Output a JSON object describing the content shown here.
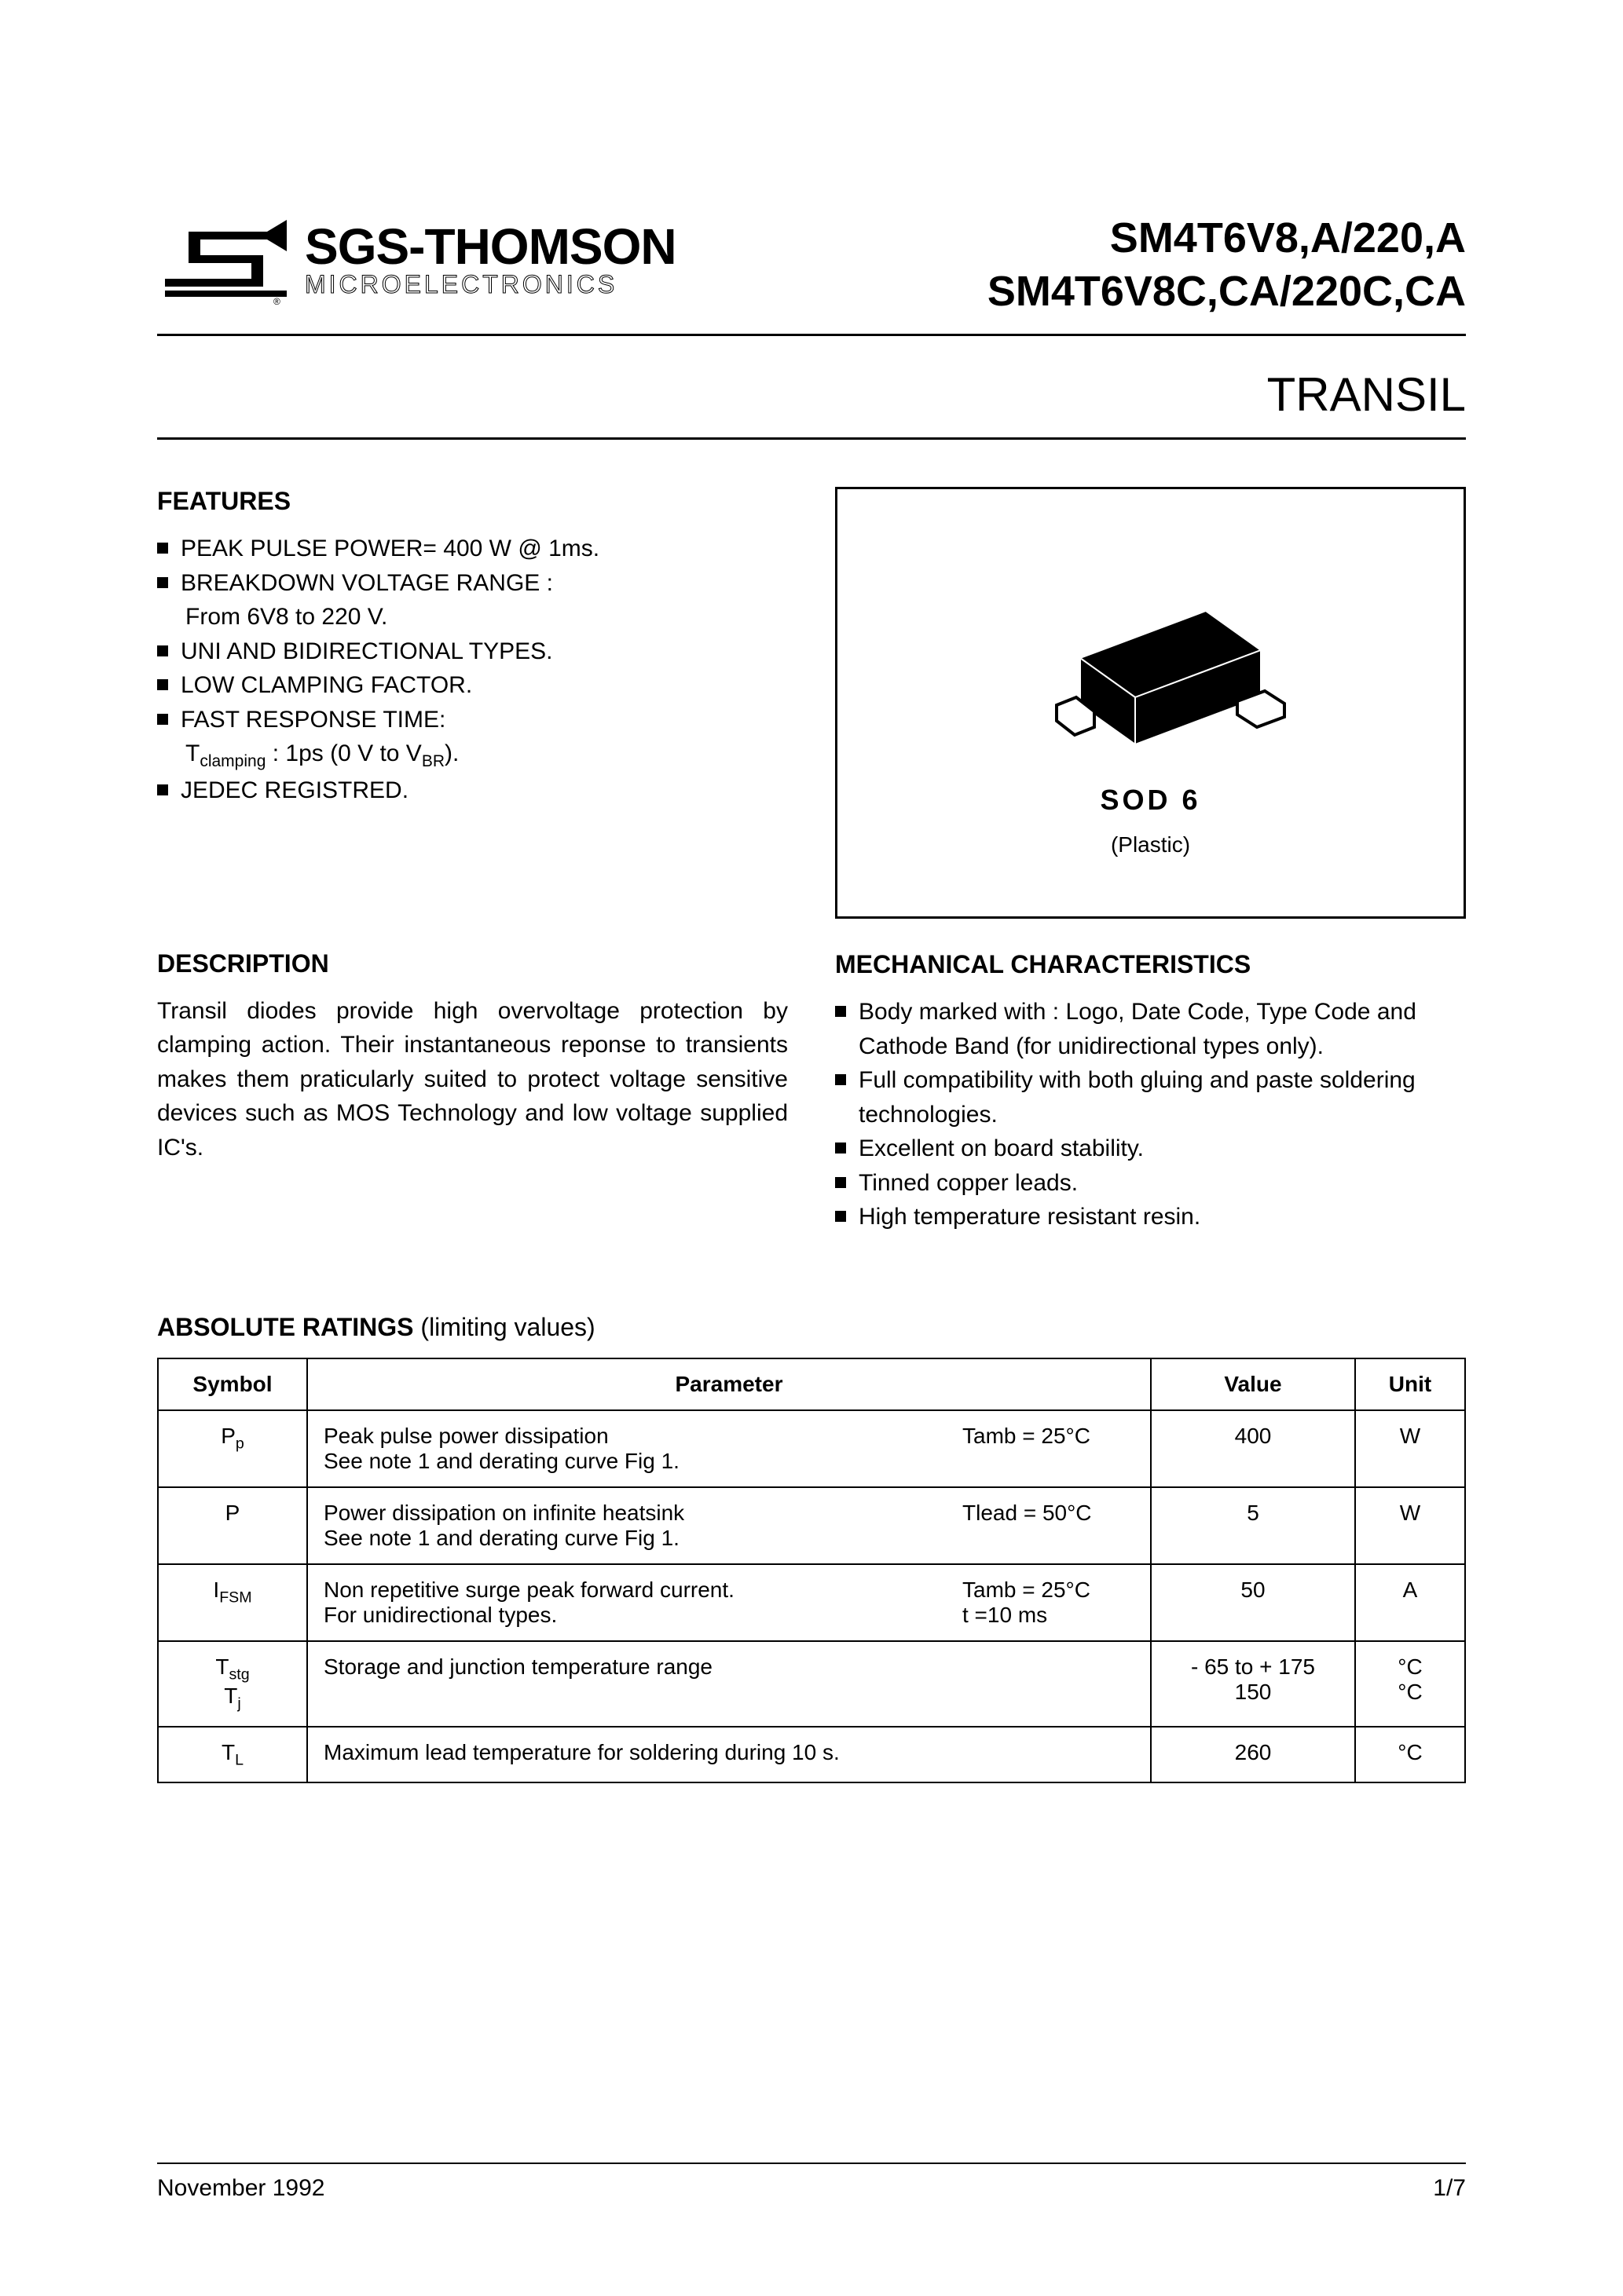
{
  "header": {
    "logo_main": "SGS-THOMSON",
    "logo_sub": "MICROELECTRONICS",
    "part_line1": "SM4T6V8,A/220,A",
    "part_line2": "SM4T6V8C,CA/220C,CA",
    "product_type": "TRANSIL"
  },
  "features": {
    "title": "FEATURES",
    "items": [
      "PEAK PULSE POWER= 400 W @ 1ms.",
      "BREAKDOWN VOLTAGE RANGE :",
      "UNI AND BIDIRECTIONAL TYPES.",
      "LOW CLAMPING FACTOR.",
      "FAST RESPONSE TIME:",
      "JEDEC REGISTRED."
    ],
    "sub_breakdown": "From 6V8 to 220 V.",
    "sub_fast": "Tclamping : 1ps (0 V to VBR)."
  },
  "description": {
    "title": "DESCRIPTION",
    "text": "Transil diodes provide high overvoltage protection by clamping action. Their instantaneous reponse to transients makes them praticularly suited to protect voltage sensitive devices such as MOS Technology and low voltage supplied IC's."
  },
  "package": {
    "label": "SOD 6",
    "sub": "(Plastic)"
  },
  "mech": {
    "title": "MECHANICAL CHARACTERISTICS",
    "items": [
      "Body marked with : Logo, Date Code, Type Code and Cathode Band (for unidirectional types only).",
      "Full compatibility with both gluing and paste soldering technologies.",
      "Excellent on board stability.",
      "Tinned copper leads.",
      "High temperature resistant resin."
    ]
  },
  "ratings": {
    "title_bold": "ABSOLUTE RATINGS",
    "title_light": " (limiting values)",
    "headers": {
      "symbol": "Symbol",
      "parameter": "Parameter",
      "value": "Value",
      "unit": "Unit"
    },
    "rows": [
      {
        "symbol_html": "P<sub>p</sub>",
        "param": "Peak pulse power dissipation\nSee note 1 and derating curve Fig 1.",
        "cond": "Tamb = 25°C",
        "value": "400",
        "unit": "W"
      },
      {
        "symbol_html": "P",
        "param": "Power dissipation on infinite heatsink\nSee note 1 and derating curve Fig 1.",
        "cond": "Tlead = 50°C",
        "value": "5",
        "unit": "W"
      },
      {
        "symbol_html": "I<sub>FSM</sub>",
        "param": "Non repetitive surge peak forward current.\nFor unidirectional types.",
        "cond": "Tamb = 25°C\nt =10 ms",
        "value": "50",
        "unit": "A"
      },
      {
        "symbol_html": "T<sub>stg</sub><br>T<sub>j</sub>",
        "param": "Storage and junction temperature range",
        "cond": "",
        "value": "- 65 to + 175\n150",
        "unit": "°C\n°C"
      },
      {
        "symbol_html": "T<sub>L</sub>",
        "param": "Maximum lead temperature for soldering during 10 s.",
        "cond": "",
        "value": "260",
        "unit": "°C"
      }
    ]
  },
  "footer": {
    "date": "November 1992",
    "page": "1/7"
  },
  "colors": {
    "text": "#000000",
    "bg": "#ffffff",
    "border": "#000000"
  }
}
